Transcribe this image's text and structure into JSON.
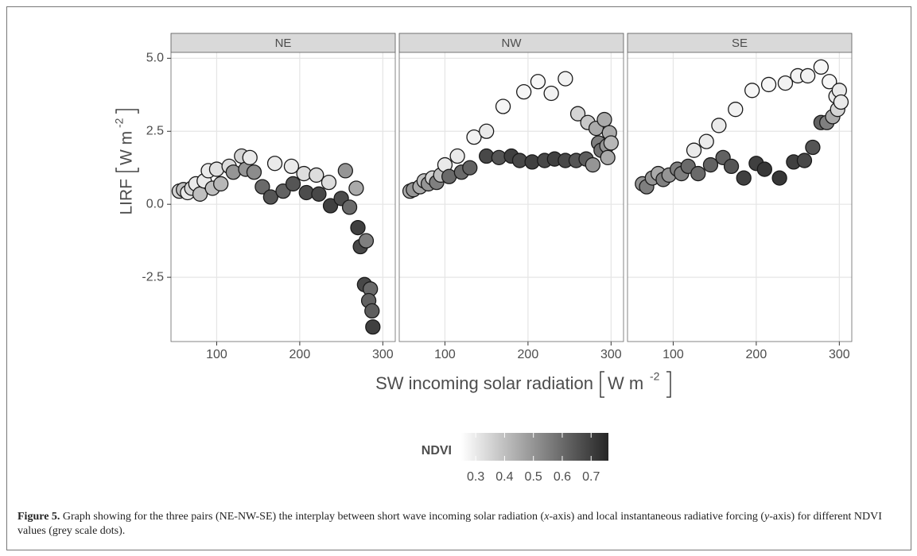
{
  "chart_data": {
    "type": "scatter",
    "y_label": "LIRF",
    "y_label_unit": "W m",
    "y_label_exp": "-2",
    "x_label": "SW incoming solar radiation",
    "x_label_unit": "W m",
    "x_label_exp": "-2",
    "xlim": [
      45,
      315
    ],
    "xticks": [
      100,
      200,
      300
    ],
    "ylim": [
      -4.7,
      5.2
    ],
    "yticks": [
      {
        "value": 5,
        "label": "5.0"
      },
      2.5,
      {
        "value": 0,
        "label": "0.0"
      },
      -2.5
    ],
    "grid": true,
    "panels": [
      {
        "name": "NE",
        "x": [
          55,
          60,
          65,
          70,
          75,
          80,
          85,
          90,
          95,
          100,
          105,
          115,
          120,
          130,
          135,
          140,
          145,
          155,
          165,
          170,
          180,
          190,
          192,
          205,
          208,
          220,
          223,
          235,
          237,
          250,
          255,
          260,
          268,
          270,
          273,
          280,
          278,
          285,
          283,
          287,
          288
        ],
        "y": [
          0.45,
          0.5,
          0.4,
          0.55,
          0.7,
          0.35,
          0.8,
          1.15,
          0.55,
          1.2,
          0.7,
          1.3,
          1.1,
          1.65,
          1.2,
          1.6,
          1.1,
          0.6,
          0.25,
          1.4,
          0.45,
          1.3,
          0.7,
          1.05,
          0.4,
          1.0,
          0.35,
          0.75,
          -0.05,
          0.2,
          1.15,
          -0.1,
          0.55,
          -0.8,
          -1.45,
          -1.25,
          -2.75,
          -2.9,
          -3.3,
          -3.65,
          -4.2
        ],
        "ndvi": [
          0.35,
          0.4,
          0.3,
          0.35,
          0.3,
          0.4,
          0.3,
          0.3,
          0.4,
          0.32,
          0.42,
          0.33,
          0.5,
          0.35,
          0.5,
          0.3,
          0.52,
          0.6,
          0.65,
          0.3,
          0.62,
          0.3,
          0.65,
          0.33,
          0.67,
          0.33,
          0.68,
          0.33,
          0.7,
          0.67,
          0.5,
          0.6,
          0.45,
          0.7,
          0.68,
          0.55,
          0.68,
          0.6,
          0.62,
          0.63,
          0.7
        ]
      },
      {
        "name": "NW",
        "x": [
          58,
          62,
          70,
          75,
          80,
          85,
          90,
          95,
          100,
          105,
          115,
          120,
          130,
          135,
          150,
          150,
          165,
          170,
          180,
          190,
          195,
          205,
          212,
          220,
          228,
          232,
          245,
          245,
          258,
          260,
          270,
          272,
          278,
          282,
          285,
          288,
          292,
          295,
          296,
          298,
          300
        ],
        "y": [
          0.45,
          0.5,
          0.6,
          0.8,
          0.7,
          0.9,
          0.75,
          1.0,
          1.35,
          0.95,
          1.65,
          1.1,
          1.25,
          2.3,
          2.5,
          1.65,
          1.6,
          3.35,
          1.65,
          1.5,
          3.85,
          1.45,
          4.2,
          1.5,
          3.8,
          1.55,
          1.5,
          4.3,
          1.5,
          3.1,
          1.55,
          2.8,
          1.35,
          2.6,
          2.1,
          1.85,
          2.9,
          2.0,
          1.6,
          2.45,
          2.1
        ],
        "ndvi": [
          0.45,
          0.5,
          0.45,
          0.4,
          0.5,
          0.35,
          0.55,
          0.4,
          0.3,
          0.6,
          0.3,
          0.6,
          0.62,
          0.28,
          0.3,
          0.68,
          0.65,
          0.27,
          0.7,
          0.68,
          0.27,
          0.7,
          0.27,
          0.68,
          0.28,
          0.7,
          0.68,
          0.28,
          0.65,
          0.35,
          0.63,
          0.38,
          0.5,
          0.45,
          0.55,
          0.58,
          0.45,
          0.5,
          0.45,
          0.45,
          0.42
        ]
      },
      {
        "name": "SE",
        "x": [
          63,
          68,
          75,
          82,
          88,
          95,
          105,
          110,
          118,
          125,
          130,
          140,
          145,
          155,
          160,
          170,
          175,
          185,
          195,
          200,
          210,
          215,
          228,
          235,
          245,
          250,
          258,
          262,
          268,
          278,
          278,
          285,
          288,
          292,
          296,
          298,
          300,
          302
        ],
        "y": [
          0.7,
          0.6,
          0.9,
          1.05,
          0.85,
          1.0,
          1.2,
          1.05,
          1.3,
          1.85,
          1.05,
          2.15,
          1.35,
          2.7,
          1.6,
          1.3,
          3.25,
          0.9,
          3.9,
          1.4,
          1.2,
          4.1,
          0.9,
          4.15,
          1.45,
          4.4,
          1.5,
          4.4,
          1.95,
          4.7,
          2.8,
          2.8,
          4.2,
          3.0,
          3.7,
          3.25,
          3.9,
          3.5
        ],
        "ndvi": [
          0.5,
          0.55,
          0.5,
          0.45,
          0.55,
          0.5,
          0.55,
          0.55,
          0.6,
          0.3,
          0.6,
          0.3,
          0.62,
          0.3,
          0.62,
          0.65,
          0.28,
          0.7,
          0.27,
          0.7,
          0.72,
          0.27,
          0.72,
          0.28,
          0.7,
          0.28,
          0.68,
          0.28,
          0.65,
          0.27,
          0.62,
          0.55,
          0.27,
          0.45,
          0.3,
          0.35,
          0.3,
          0.3
        ]
      }
    ],
    "colorbar": {
      "title": "NDVI",
      "lim": [
        0.25,
        0.76
      ],
      "ticks": [
        0.3,
        0.4,
        0.5,
        0.6,
        0.7
      ],
      "colors": [
        "#ffffff",
        "#262626"
      ]
    }
  },
  "caption": {
    "label": "Figure 5.",
    "parts": [
      "Graph showing for the three pairs (NE-NW-SE) the interplay between short wave incoming solar radiation (",
      "x",
      "-axis) and local instantaneous radiative forcing (",
      "y",
      "-axis) for different NDVI values (grey scale dots)."
    ]
  }
}
